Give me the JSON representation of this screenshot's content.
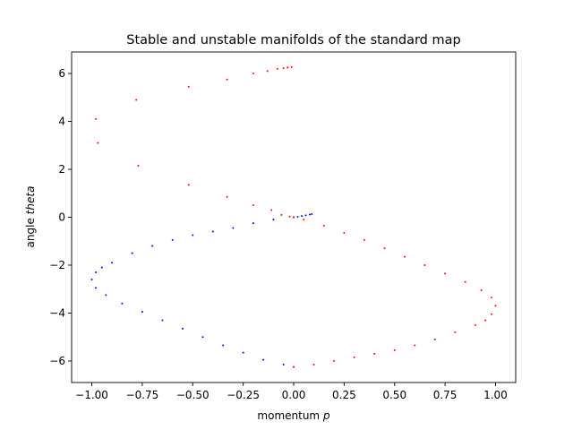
{
  "chart_data": {
    "type": "scatter",
    "title": "Stable and unstable manifolds of the standard map",
    "xlabel": "momentum",
    "xlabel_var": "p",
    "ylabel": "angle",
    "ylabel_var": "theta",
    "xlim": [
      -1.1,
      1.1
    ],
    "ylim": [
      -6.9,
      6.9
    ],
    "xticks": [
      -1.0,
      -0.75,
      -0.5,
      -0.25,
      0.0,
      0.25,
      0.5,
      0.75,
      1.0
    ],
    "xtick_labels": [
      "−1.00",
      "−0.75",
      "−0.50",
      "−0.25",
      "0.00",
      "0.25",
      "0.50",
      "0.75",
      "1.00"
    ],
    "yticks": [
      -6,
      -4,
      -2,
      0,
      2,
      4,
      6
    ],
    "ytick_labels": [
      "−6",
      "−4",
      "−2",
      "0",
      "2",
      "4",
      "6"
    ],
    "grid": false,
    "legend": "none",
    "series": [
      {
        "color": "#0000ff",
        "points": [
          [
            0.0,
            0.0
          ],
          [
            -0.1,
            -0.1
          ],
          [
            -0.2,
            -0.25
          ],
          [
            -0.3,
            -0.45
          ],
          [
            -0.4,
            -0.6
          ],
          [
            -0.5,
            -0.75
          ],
          [
            -0.6,
            -0.95
          ],
          [
            -0.7,
            -1.2
          ],
          [
            -0.8,
            -1.5
          ],
          [
            -0.9,
            -1.9
          ],
          [
            -0.95,
            -2.1
          ],
          [
            -0.98,
            -2.3
          ],
          [
            -1.0,
            -2.6
          ],
          [
            -0.98,
            -2.95
          ],
          [
            -0.93,
            -3.25
          ],
          [
            -0.85,
            -3.6
          ],
          [
            -0.75,
            -3.95
          ],
          [
            -0.65,
            -4.3
          ],
          [
            -0.55,
            -4.65
          ],
          [
            -0.45,
            -5.0
          ],
          [
            -0.35,
            -5.35
          ],
          [
            -0.25,
            -5.65
          ],
          [
            -0.15,
            -5.95
          ],
          [
            -0.05,
            -6.15
          ],
          [
            0.0,
            -6.25
          ],
          [
            0.02,
            0.02
          ],
          [
            0.04,
            0.05
          ],
          [
            0.06,
            0.08
          ],
          [
            0.08,
            0.11
          ],
          [
            0.09,
            0.13
          ]
        ]
      },
      {
        "color": "#ff0000",
        "points": [
          [
            0.0,
            -6.25
          ],
          [
            0.1,
            -6.15
          ],
          [
            0.2,
            -6.0
          ],
          [
            0.3,
            -5.85
          ],
          [
            0.4,
            -5.7
          ],
          [
            0.5,
            -5.55
          ],
          [
            0.6,
            -5.35
          ],
          [
            0.7,
            -5.1
          ],
          [
            0.8,
            -4.8
          ],
          [
            0.9,
            -4.5
          ],
          [
            0.95,
            -4.3
          ],
          [
            0.98,
            -4.05
          ],
          [
            1.0,
            -3.7
          ],
          [
            0.98,
            -3.35
          ],
          [
            0.93,
            -3.05
          ],
          [
            0.85,
            -2.7
          ],
          [
            0.75,
            -2.35
          ],
          [
            0.65,
            -2.0
          ],
          [
            0.55,
            -1.65
          ],
          [
            0.45,
            -1.3
          ],
          [
            0.35,
            -0.95
          ],
          [
            0.25,
            -0.65
          ],
          [
            0.15,
            -0.35
          ],
          [
            0.05,
            -0.1
          ],
          [
            0.0,
            0.0
          ],
          [
            -0.02,
            0.03
          ],
          [
            -0.06,
            0.1
          ],
          [
            -0.11,
            0.3
          ],
          [
            -0.2,
            0.5
          ],
          [
            -0.33,
            0.85
          ],
          [
            -0.52,
            1.35
          ],
          [
            -0.77,
            2.15
          ],
          [
            -0.97,
            3.1
          ],
          [
            -0.98,
            4.1
          ],
          [
            -0.78,
            4.9
          ],
          [
            -0.52,
            5.45
          ],
          [
            -0.33,
            5.75
          ],
          [
            -0.2,
            6.0
          ],
          [
            -0.13,
            6.1
          ],
          [
            -0.08,
            6.2
          ],
          [
            -0.05,
            6.22
          ],
          [
            -0.03,
            6.25
          ],
          [
            -0.01,
            6.27
          ]
        ]
      }
    ]
  }
}
